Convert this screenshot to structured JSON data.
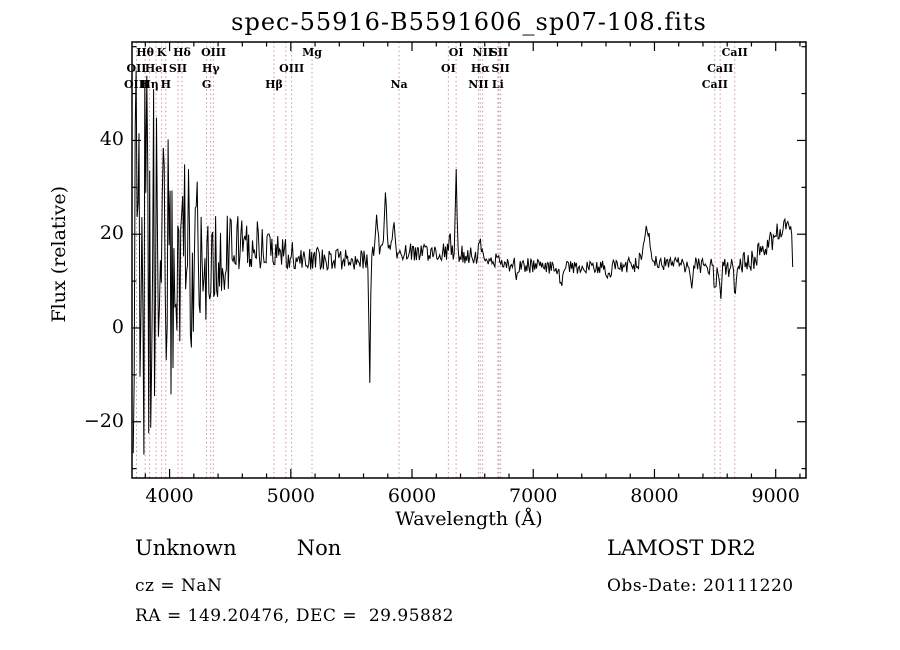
{
  "title": "spec-55916-B5591606_sp07-108.fits",
  "chart_data": {
    "type": "line",
    "title": "spec-55916-B5591606_sp07-108.fits",
    "xlabel": "Wavelength (Å)",
    "ylabel": "Flux (relative)",
    "xlim": [
      3690,
      9250
    ],
    "ylim": [
      -32,
      61
    ],
    "xticks": [
      4000,
      5000,
      6000,
      7000,
      8000,
      9000
    ],
    "yticks": [
      -20,
      0,
      20,
      40
    ],
    "x_minor_step": 200,
    "y_minor_step": 10,
    "grid": false,
    "line_color": "#000000",
    "marker_line_color": "#cc9999",
    "spectral_lines": [
      {
        "label": "OII",
        "wl": 3727,
        "row": 2
      },
      {
        "label": "OIII",
        "wl": 3727,
        "row": 3
      },
      {
        "label": "Hθ",
        "wl": 3798,
        "row": 1
      },
      {
        "label": "Hη",
        "wl": 3835,
        "row": 3
      },
      {
        "label": "HeI",
        "wl": 3889,
        "row": 2
      },
      {
        "label": "K",
        "wl": 3934,
        "row": 1
      },
      {
        "label": "H",
        "wl": 3969,
        "row": 3
      },
      {
        "label": "SII",
        "wl": 4069,
        "row": 2
      },
      {
        "label": "Hδ",
        "wl": 4102,
        "row": 1
      },
      {
        "label": "G",
        "wl": 4305,
        "row": 3
      },
      {
        "label": "Hγ",
        "wl": 4340,
        "row": 2
      },
      {
        "label": "OIII",
        "wl": 4363,
        "row": 1
      },
      {
        "label": "Hβ",
        "wl": 4861,
        "row": 3
      },
      {
        "label": "",
        "wl": 4959,
        "row": 0
      },
      {
        "label": "OIII",
        "wl": 5007,
        "row": 2
      },
      {
        "label": "Mg",
        "wl": 5175,
        "row": 1
      },
      {
        "label": "Na",
        "wl": 5893,
        "row": 3
      },
      {
        "label": "OI",
        "wl": 6300,
        "row": 2
      },
      {
        "label": "OI",
        "wl": 6364,
        "row": 1
      },
      {
        "label": "NII",
        "wl": 6548,
        "row": 3
      },
      {
        "label": "Hα",
        "wl": 6563,
        "row": 2
      },
      {
        "label": "NII",
        "wl": 6583,
        "row": 1
      },
      {
        "label": "Li",
        "wl": 6708,
        "row": 3
      },
      {
        "label": "SII",
        "wl": 6717,
        "row": 1
      },
      {
        "label": "SII",
        "wl": 6731,
        "row": 2
      },
      {
        "label": "CaII",
        "wl": 8498,
        "row": 3
      },
      {
        "label": "CaII",
        "wl": 8542,
        "row": 2
      },
      {
        "label": "CaII",
        "wl": 8662,
        "row": 1
      }
    ],
    "spectrum": {
      "start": 3700,
      "end": 9140,
      "step": 8,
      "seed": 20111220,
      "continuum": [
        [
          3700,
          12
        ],
        [
          3900,
          13
        ],
        [
          4100,
          14
        ],
        [
          4300,
          15
        ],
        [
          4500,
          16.5
        ],
        [
          4600,
          18
        ],
        [
          4800,
          17
        ],
        [
          5000,
          15.5
        ],
        [
          5300,
          14.5
        ],
        [
          5600,
          14.5
        ],
        [
          5750,
          16
        ],
        [
          5900,
          16.5
        ],
        [
          6100,
          16
        ],
        [
          6300,
          16.5
        ],
        [
          6450,
          15.5
        ],
        [
          6600,
          14.5
        ],
        [
          6800,
          13.8
        ],
        [
          7000,
          13.2
        ],
        [
          7300,
          12.8
        ],
        [
          7600,
          13
        ],
        [
          7800,
          13.5
        ],
        [
          8000,
          14
        ],
        [
          8200,
          13.8
        ],
        [
          8400,
          13.2
        ],
        [
          8600,
          12.8
        ],
        [
          8800,
          14.5
        ],
        [
          8950,
          18
        ],
        [
          9050,
          21
        ],
        [
          9110,
          22.5
        ],
        [
          9130,
          23
        ],
        [
          9140,
          14
        ]
      ],
      "noise": [
        [
          3700,
          45
        ],
        [
          3850,
          42
        ],
        [
          3950,
          34
        ],
        [
          4050,
          28
        ],
        [
          4150,
          22
        ],
        [
          4250,
          16
        ],
        [
          4400,
          10
        ],
        [
          4600,
          7
        ],
        [
          4800,
          4.5
        ],
        [
          5000,
          3
        ],
        [
          5200,
          2.5
        ],
        [
          5600,
          2.2
        ],
        [
          6000,
          2
        ],
        [
          6400,
          2
        ],
        [
          6700,
          1.8
        ],
        [
          7100,
          1.5
        ],
        [
          7700,
          1.6
        ],
        [
          8100,
          1.8
        ],
        [
          8500,
          1.8
        ],
        [
          8800,
          2.4
        ],
        [
          9140,
          2.6
        ]
      ],
      "features": [
        [
          5650,
          6,
          -27
        ],
        [
          5710,
          9,
          7
        ],
        [
          5782,
          8,
          14
        ],
        [
          5845,
          9,
          6
        ],
        [
          6310,
          6,
          4
        ],
        [
          6364,
          7,
          16
        ],
        [
          6560,
          9,
          4
        ],
        [
          6870,
          11,
          -3.5
        ],
        [
          7230,
          10,
          -3.5
        ],
        [
          7620,
          12,
          -2.5
        ],
        [
          7935,
          28,
          7
        ],
        [
          8300,
          9,
          -5
        ],
        [
          8500,
          8,
          -6
        ],
        [
          8545,
          8,
          -6
        ],
        [
          8665,
          8,
          -6.5
        ]
      ]
    }
  },
  "footer": {
    "class_label": "Unknown         Non",
    "survey": "LAMOST DR2",
    "cz": "cz = NaN",
    "obs_date": "Obs-Date: 20111220",
    "coords": "RA = 149.20476, DEC =  29.95882"
  }
}
